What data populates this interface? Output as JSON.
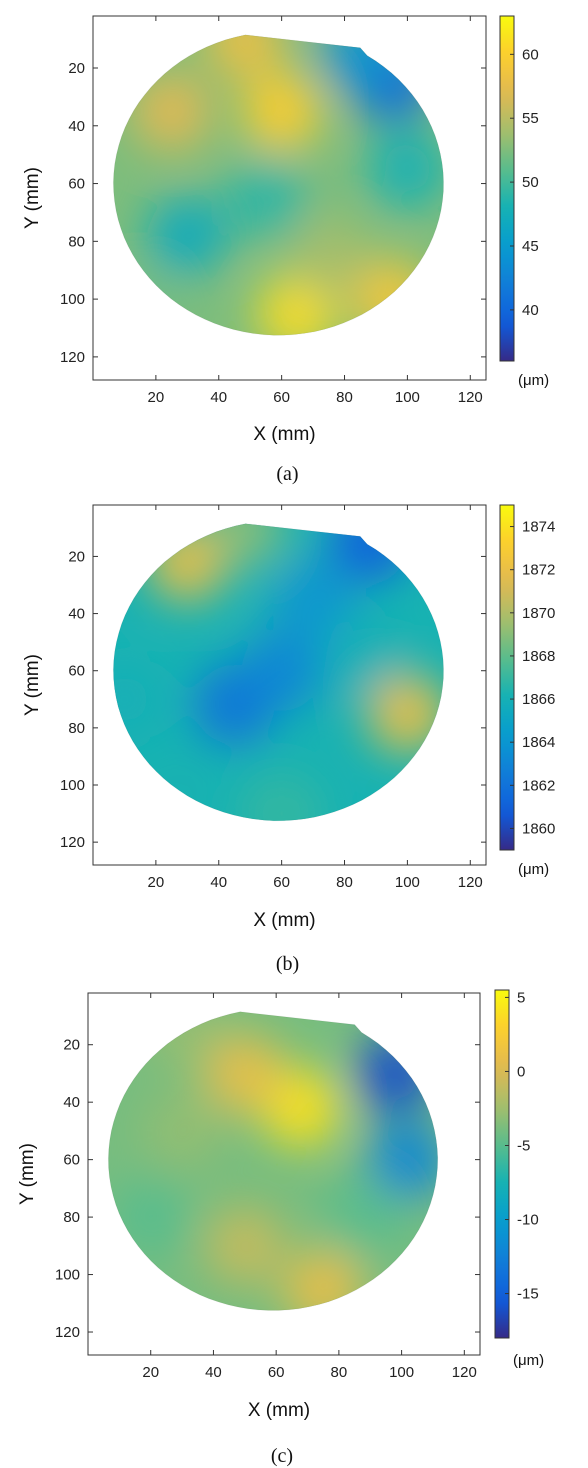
{
  "chart_data": [
    {
      "type": "heatmap",
      "caption": "(a)",
      "xlabel": "X (mm)",
      "ylabel": "Y (mm)",
      "xlim": [
        0,
        125
      ],
      "ylim": [
        128,
        2
      ],
      "x_ticks": [
        20,
        40,
        60,
        80,
        100,
        120
      ],
      "y_ticks": [
        20,
        40,
        60,
        80,
        100,
        120
      ],
      "colorbar": {
        "min": 36,
        "max": 63,
        "ticks": [
          40,
          45,
          50,
          55,
          60
        ],
        "unit": "(μm)"
      },
      "features": [
        {
          "x": 60,
          "y": 35,
          "value": 60
        },
        {
          "x": 25,
          "y": 35,
          "value": 57
        },
        {
          "x": 48,
          "y": 10,
          "value": 58
        },
        {
          "x": 30,
          "y": 78,
          "value": 47
        },
        {
          "x": 55,
          "y": 65,
          "value": 49
        },
        {
          "x": 65,
          "y": 105,
          "value": 61
        },
        {
          "x": 95,
          "y": 100,
          "value": 59
        },
        {
          "x": 95,
          "y": 25,
          "value": 40
        },
        {
          "x": 85,
          "y": 15,
          "value": 44
        },
        {
          "x": 100,
          "y": 55,
          "value": 48
        },
        {
          "x": 75,
          "y": 85,
          "value": 54
        },
        {
          "x": 15,
          "y": 105,
          "value": 52
        }
      ]
    },
    {
      "type": "heatmap",
      "caption": "(b)",
      "xlabel": "X (mm)",
      "ylabel": "Y (mm)",
      "xlim": [
        0,
        125
      ],
      "ylim": [
        128,
        2
      ],
      "x_ticks": [
        20,
        40,
        60,
        80,
        100,
        120
      ],
      "y_ticks": [
        20,
        40,
        60,
        80,
        100,
        120
      ],
      "colorbar": {
        "min": 1859,
        "max": 1875,
        "ticks": [
          1860,
          1862,
          1864,
          1866,
          1868,
          1870,
          1872,
          1874
        ],
        "unit": "(μm)"
      },
      "features": [
        {
          "x": 30,
          "y": 22,
          "value": 1872
        },
        {
          "x": 48,
          "y": 10,
          "value": 1869
        },
        {
          "x": 45,
          "y": 72,
          "value": 1862
        },
        {
          "x": 60,
          "y": 60,
          "value": 1863
        },
        {
          "x": 70,
          "y": 35,
          "value": 1864
        },
        {
          "x": 88,
          "y": 15,
          "value": 1861
        },
        {
          "x": 100,
          "y": 75,
          "value": 1872
        },
        {
          "x": 10,
          "y": 70,
          "value": 1866
        },
        {
          "x": 60,
          "y": 110,
          "value": 1867
        },
        {
          "x": 85,
          "y": 55,
          "value": 1866
        }
      ]
    },
    {
      "type": "heatmap",
      "caption": "(c)",
      "xlabel": "X (mm)",
      "ylabel": "Y (mm)",
      "xlim": [
        0,
        125
      ],
      "ylim": [
        128,
        2
      ],
      "x_ticks": [
        20,
        40,
        60,
        80,
        100,
        120
      ],
      "y_ticks": [
        20,
        40,
        60,
        80,
        100,
        120
      ],
      "colorbar": {
        "min": -18,
        "max": 5.5,
        "ticks": [
          5,
          0,
          -5,
          -10,
          -15
        ],
        "unit": "(μm)"
      },
      "features": [
        {
          "x": 68,
          "y": 42,
          "value": 4
        },
        {
          "x": 50,
          "y": 30,
          "value": 1
        },
        {
          "x": 30,
          "y": 50,
          "value": -3
        },
        {
          "x": 20,
          "y": 80,
          "value": -5
        },
        {
          "x": 50,
          "y": 90,
          "value": -1
        },
        {
          "x": 75,
          "y": 105,
          "value": 1
        },
        {
          "x": 98,
          "y": 30,
          "value": -16
        },
        {
          "x": 102,
          "y": 60,
          "value": -12
        },
        {
          "x": 88,
          "y": 80,
          "value": -5
        },
        {
          "x": 30,
          "y": 15,
          "value": -3
        }
      ]
    }
  ]
}
